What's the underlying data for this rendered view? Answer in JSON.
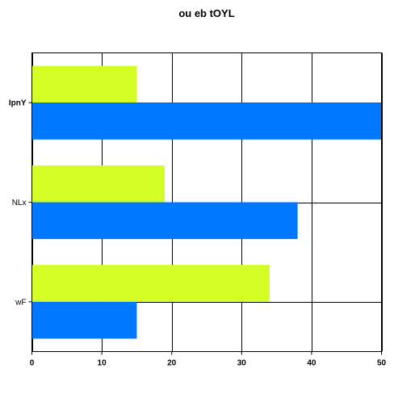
{
  "chart_data": {
    "type": "bar",
    "orientation": "horizontal",
    "title": "ou eb tOYL",
    "xlabel": "",
    "ylabel": "",
    "categories": [
      "IpnY",
      "NLx",
      "wF"
    ],
    "series": [
      {
        "values": [
          15,
          19,
          34
        ],
        "color": "#d4ff26"
      },
      {
        "values": [
          50,
          38,
          15
        ],
        "color": "#0077ff"
      }
    ],
    "xlim": [
      0,
      50
    ],
    "xticks": [
      0,
      10,
      20,
      30,
      40,
      50
    ],
    "grid": true,
    "legend": "none"
  }
}
